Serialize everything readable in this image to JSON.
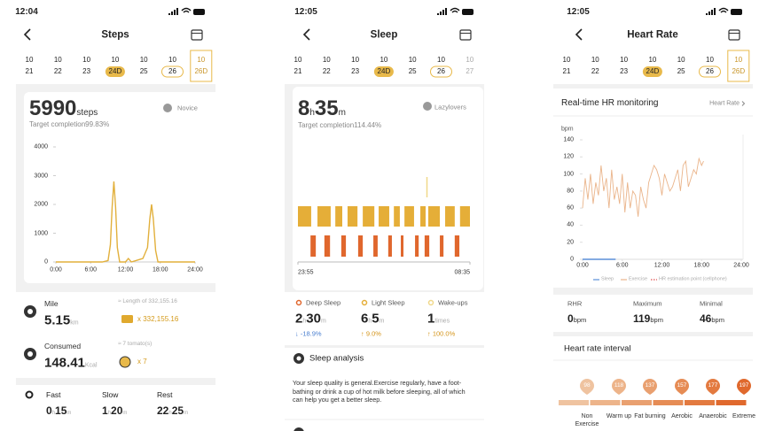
{
  "screens": [
    {
      "time": "12:04",
      "title": "Steps",
      "dates": [
        {
          "month": "10",
          "day": "21"
        },
        {
          "month": "10",
          "day": "22"
        },
        {
          "month": "10",
          "day": "23"
        },
        {
          "month": "10",
          "day": "24D"
        },
        {
          "month": "10",
          "day": "25"
        },
        {
          "month": "10",
          "day": "26"
        },
        {
          "month": "10",
          "day": "26D"
        }
      ],
      "summary": {
        "value": 5990,
        "unit": "steps",
        "badge": "Novice",
        "target": "Target completion99.83%"
      },
      "chart_data": {
        "type": "line",
        "color": "#e2b03c",
        "x": [
          0,
          8,
          9,
          9.4,
          9.7,
          10,
          10.3,
          10.6,
          11,
          12,
          12.5,
          13,
          14,
          15,
          15.8,
          16.2,
          16.5,
          16.8,
          17.2,
          17.6,
          24
        ],
        "values": [
          0,
          0,
          50,
          600,
          1900,
          2800,
          1900,
          500,
          0,
          0,
          120,
          0,
          60,
          120,
          500,
          1500,
          2000,
          1500,
          400,
          0,
          0
        ],
        "xlim": [
          0,
          24
        ],
        "xticks": [
          {
            "value": 0,
            "label": "0:00"
          },
          {
            "value": 6,
            "label": "6:00"
          },
          {
            "value": 12,
            "label": "12:00"
          },
          {
            "value": 18,
            "label": "18:00"
          },
          {
            "value": 24,
            "label": "24:00"
          }
        ],
        "ylim": [
          0,
          4000
        ],
        "yticks": [
          0,
          1000,
          2000,
          3000,
          4000
        ]
      },
      "stats": [
        {
          "label": "Mile",
          "value": 5.15,
          "unit": "km",
          "equivalent": "≈ Length of 332,155.16",
          "count": "x 332,155.16"
        },
        {
          "label": "Consumed",
          "value": 148.41,
          "unit": "Kcal",
          "equivalent": "≈ 7 tomato(s)",
          "count": "x 7"
        }
      ],
      "hour_unit": "h",
      "minute_unit": "m",
      "activity": [
        {
          "label": "Fast",
          "hours": 0,
          "minutes": 15
        },
        {
          "label": "Slow",
          "hours": 1,
          "minutes": 20
        },
        {
          "label": "Rest",
          "hours": 22,
          "minutes": 25
        }
      ]
    },
    {
      "time": "12:05",
      "title": "Sleep",
      "dates": [
        {
          "month": "10",
          "day": "21"
        },
        {
          "month": "10",
          "day": "22"
        },
        {
          "month": "10",
          "day": "23"
        },
        {
          "month": "10",
          "day": "24D"
        },
        {
          "month": "10",
          "day": "25"
        },
        {
          "month": "10",
          "day": "26"
        },
        {
          "month": "10",
          "day": "27"
        }
      ],
      "hour_unit": "h",
      "minute_unit": "m",
      "summary": {
        "hours": 8,
        "minutes": 35,
        "badge": "Lazylovers",
        "target": "Target completion114.44%"
      },
      "chart_data": {
        "type": "timeline",
        "xlim": [
          0,
          520
        ],
        "xticks": [
          {
            "value": 0,
            "label": "23:55"
          },
          {
            "value": 520,
            "label": "08:35"
          }
        ],
        "light_sleep": [
          [
            0,
            40
          ],
          [
            59,
            99
          ],
          [
            113,
            134
          ],
          [
            150,
            180
          ],
          [
            196,
            231
          ],
          [
            244,
            276
          ],
          [
            290,
            308
          ],
          [
            322,
            351
          ],
          [
            370,
            386
          ],
          [
            394,
            429
          ],
          [
            445,
            474
          ],
          [
            490,
            520
          ]
        ],
        "deep_sleep": [
          [
            38,
            54
          ],
          [
            80,
            97
          ],
          [
            131,
            145
          ],
          [
            182,
            196
          ],
          [
            228,
            241
          ],
          [
            273,
            284
          ],
          [
            311,
            319
          ],
          [
            354,
            365
          ],
          [
            383,
            397
          ],
          [
            429,
            440
          ],
          [
            474,
            488
          ]
        ],
        "wake": [
          [
            388,
            390
          ]
        ],
        "light_color": "#e5ae38",
        "deep_color": "#e0672d",
        "wake_color": "#f0d88a"
      },
      "breakdown": [
        {
          "label": "Deep Sleep",
          "hours": 2,
          "minutes": 30,
          "change": "↓ -18.9%"
        },
        {
          "label": "Light Sleep",
          "hours": 6,
          "minutes": 5,
          "change": "↑ 9.0%"
        },
        {
          "label": "Wake-ups",
          "count": 1,
          "unit": "times",
          "change": "↑ 100.0%"
        }
      ],
      "analysis": {
        "title": "Sleep analysis",
        "text": "Your sleep quality is general.Exercise regularly, have a foot-bathing  or drink a cup of hot milk before sleeping, all of which can help you get a better sleep."
      }
    },
    {
      "time": "12:05",
      "title": "Heart Rate",
      "dates": [
        {
          "month": "10",
          "day": "21"
        },
        {
          "month": "10",
          "day": "22"
        },
        {
          "month": "10",
          "day": "23"
        },
        {
          "month": "10",
          "day": "24D"
        },
        {
          "month": "10",
          "day": "25"
        },
        {
          "month": "10",
          "day": "26"
        },
        {
          "month": "10",
          "day": "26D"
        }
      ],
      "section_title": "Real-time HR monitoring",
      "link": "Heart Rate",
      "chart_data": {
        "type": "line",
        "y_label": "bpm",
        "xlim": [
          0,
          24
        ],
        "xticks": [
          {
            "value": 0,
            "label": "0:00"
          },
          {
            "value": 6,
            "label": "6:00"
          },
          {
            "value": 12,
            "label": "12:00"
          },
          {
            "value": 18,
            "label": "18:00"
          },
          {
            "value": 24,
            "label": "24:00"
          }
        ],
        "ylim": [
          0,
          140
        ],
        "yticks": [
          0,
          20,
          40,
          60,
          80,
          100,
          120,
          140
        ],
        "series": [
          {
            "name": "Sleep",
            "color": "#5b8fd8",
            "x": [
              0,
              5
            ],
            "values": [
              0,
              0
            ]
          },
          {
            "name": "Exercise",
            "color": "#eab48a",
            "x": [
              0,
              0.4,
              0.8,
              1.2,
              1.6,
              2.0,
              2.4,
              2.8,
              3.2,
              3.6,
              4.0,
              4.4,
              4.8,
              5.2,
              5.6,
              6.0,
              6.4,
              6.8,
              7.2,
              7.6,
              8.0,
              8.4,
              8.8,
              9.2,
              9.6,
              10.0,
              10.4,
              10.8,
              11.2,
              11.6,
              12.0,
              12.4,
              12.8,
              13.2,
              13.6,
              14.0,
              14.4,
              14.8,
              15.2,
              15.6,
              16.0,
              16.4,
              16.8,
              17.2,
              17.6,
              18.0,
              18.3
            ],
            "values": [
              60,
              95,
              70,
              100,
              65,
              90,
              75,
              110,
              80,
              95,
              60,
              105,
              70,
              85,
              65,
              100,
              55,
              90,
              60,
              80,
              75,
              50,
              85,
              70,
              60,
              90,
              100,
              110,
              105,
              95,
              75,
              100,
              90,
              80,
              85,
              95,
              105,
              80,
              110,
              115,
              85,
              95,
              105,
              100,
              118,
              110,
              115
            ]
          },
          {
            "name": "HR estimation point (cellphone)",
            "color": "#e05050",
            "x": [],
            "values": []
          }
        ]
      },
      "summary": [
        {
          "label": "RHR",
          "value": 0,
          "unit": "bpm"
        },
        {
          "label": "Maximum",
          "value": 119,
          "unit": "bpm"
        },
        {
          "label": "Minimal",
          "value": 46,
          "unit": "bpm"
        }
      ],
      "zones": {
        "title": "Heart rate interval",
        "items": [
          {
            "label": "Non Exercise",
            "value": 98
          },
          {
            "label": "Warm up",
            "value": 118
          },
          {
            "label": "Fat burning",
            "value": 137
          },
          {
            "label": "Aerobic",
            "value": 157
          },
          {
            "label": "Anaerobic",
            "value": 177
          },
          {
            "label": "Extreme",
            "value": 197
          }
        ]
      }
    }
  ]
}
